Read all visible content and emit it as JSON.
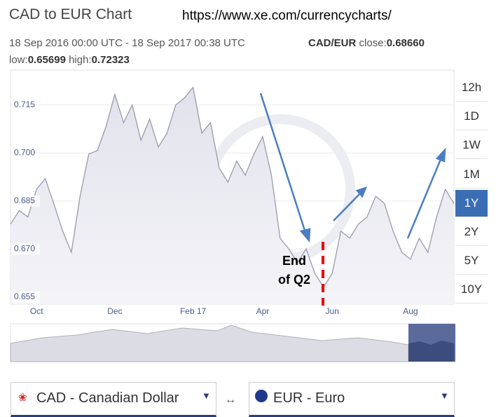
{
  "header": {
    "title": "CAD to EUR Chart",
    "url": "https://www.xe.com/currencycharts/",
    "range": "18 Sep 2016 00:00 UTC - 18 Sep 2017 00:38 UTC",
    "pair": "CAD/EUR",
    "close_label": "close:",
    "close": "0.68660",
    "low_label": "low:",
    "low": "0.65699",
    "high_label": "high:",
    "high": "0.72323"
  },
  "chart_data": {
    "type": "area",
    "categories": [
      null,
      null,
      null,
      "Oct",
      null,
      null,
      null,
      null,
      null,
      null,
      null,
      null,
      "Dec",
      null,
      null,
      null,
      null,
      null,
      null,
      null,
      null,
      "Feb 17",
      null,
      null,
      null,
      null,
      null,
      null,
      null,
      "Apr",
      null,
      null,
      null,
      null,
      null,
      null,
      null,
      "Jun",
      null,
      null,
      null,
      null,
      null,
      null,
      null,
      null,
      "Aug",
      null,
      null,
      null,
      null,
      null
    ],
    "values": [
      0.6778,
      0.682,
      0.68,
      0.6887,
      0.692,
      0.684,
      0.6756,
      0.669,
      0.6865,
      0.6997,
      0.7008,
      0.7084,
      0.7183,
      0.7095,
      0.715,
      0.704,
      0.7106,
      0.7019,
      0.7062,
      0.715,
      0.7172,
      0.7205,
      0.7062,
      0.7095,
      0.6953,
      0.6909,
      0.6975,
      0.6931,
      0.6997,
      0.7051,
      0.6931,
      0.6734,
      0.6701,
      0.6657,
      0.6701,
      0.6624,
      0.6581,
      0.6624,
      0.6756,
      0.6734,
      0.6778,
      0.68,
      0.6865,
      0.6843,
      0.6756,
      0.669,
      0.6668,
      0.6734,
      0.669,
      0.68,
      0.6887,
      0.6843
    ],
    "color": "#9a9aae",
    "ylim": [
      0.6528,
      0.7259
    ],
    "yticks": [
      0.715,
      {
        "value": 0.7,
        "label": "0.700"
      },
      0.685,
      {
        "value": 0.67,
        "label": "0.670"
      },
      0.655
    ],
    "annotations": [
      "End",
      "of Q2"
    ]
  },
  "periods": [
    "12h",
    "1D",
    "1W",
    "1M",
    "1Y",
    "2Y",
    "5Y",
    "10Y"
  ],
  "selected_period": "1Y",
  "from_currency": "CAD - Canadian Dollar",
  "to_currency": "EUR - Euro"
}
